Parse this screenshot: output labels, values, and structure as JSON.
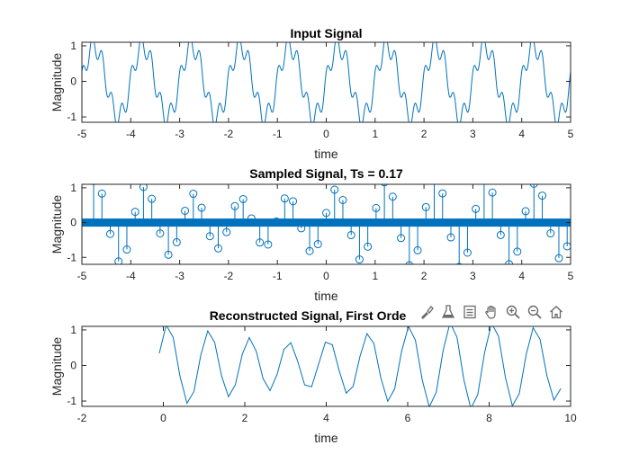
{
  "colors": {
    "line": "#0072BD",
    "axis": "#262626",
    "icon": "#6b6b6b"
  },
  "toolbar": {
    "icons": [
      "brush-icon",
      "data-tips-icon",
      "legend-icon",
      "pan-icon",
      "zoom-in-icon",
      "zoom-out-icon",
      "home-icon"
    ]
  },
  "chart_data": [
    {
      "type": "line",
      "title": "Input Signal",
      "xlabel": "time",
      "ylabel": "Magnitude",
      "xlim": [
        -5,
        5
      ],
      "ylim": [
        -1.15,
        1.1
      ],
      "xticks": [
        "-5",
        "-4",
        "-3",
        "-2",
        "-1",
        "0",
        "1",
        "2",
        "3",
        "4",
        "5"
      ],
      "yticks": [
        "-1",
        "0",
        "1"
      ],
      "signal": "y = sin(2πt) + 0.3·cos(2π·5t − 0.4)",
      "x_range": [
        -5,
        5
      ]
    },
    {
      "type": "stem",
      "title": "Sampled Signal, Ts = 0.17",
      "xlabel": "time",
      "ylabel": "Magnitude",
      "xlim": [
        -5,
        5
      ],
      "ylim": [
        -1.2,
        1.1
      ],
      "xticks": [
        "-5",
        "-4",
        "-3",
        "-2",
        "-1",
        "0",
        "1",
        "2",
        "3",
        "4",
        "5"
      ],
      "yticks": [
        "-1",
        "0",
        "1"
      ],
      "sample_period": 0.17,
      "x_range": [
        -4.93,
        4.93
      ],
      "zero_markers_range": [
        -5,
        5
      ]
    },
    {
      "type": "line",
      "title": "Reconstructed Signal, First Orde",
      "xlabel": "time",
      "ylabel": "Magnitude",
      "xlim": [
        -2,
        10
      ],
      "ylim": [
        -1.15,
        1.1
      ],
      "xticks": [
        "-2",
        "0",
        "2",
        "4",
        "6",
        "8",
        "10"
      ],
      "yticks": [
        "-1",
        "0",
        "1"
      ],
      "x_range": [
        -0.1,
        9.8
      ],
      "sample_period": 0.17
    }
  ]
}
